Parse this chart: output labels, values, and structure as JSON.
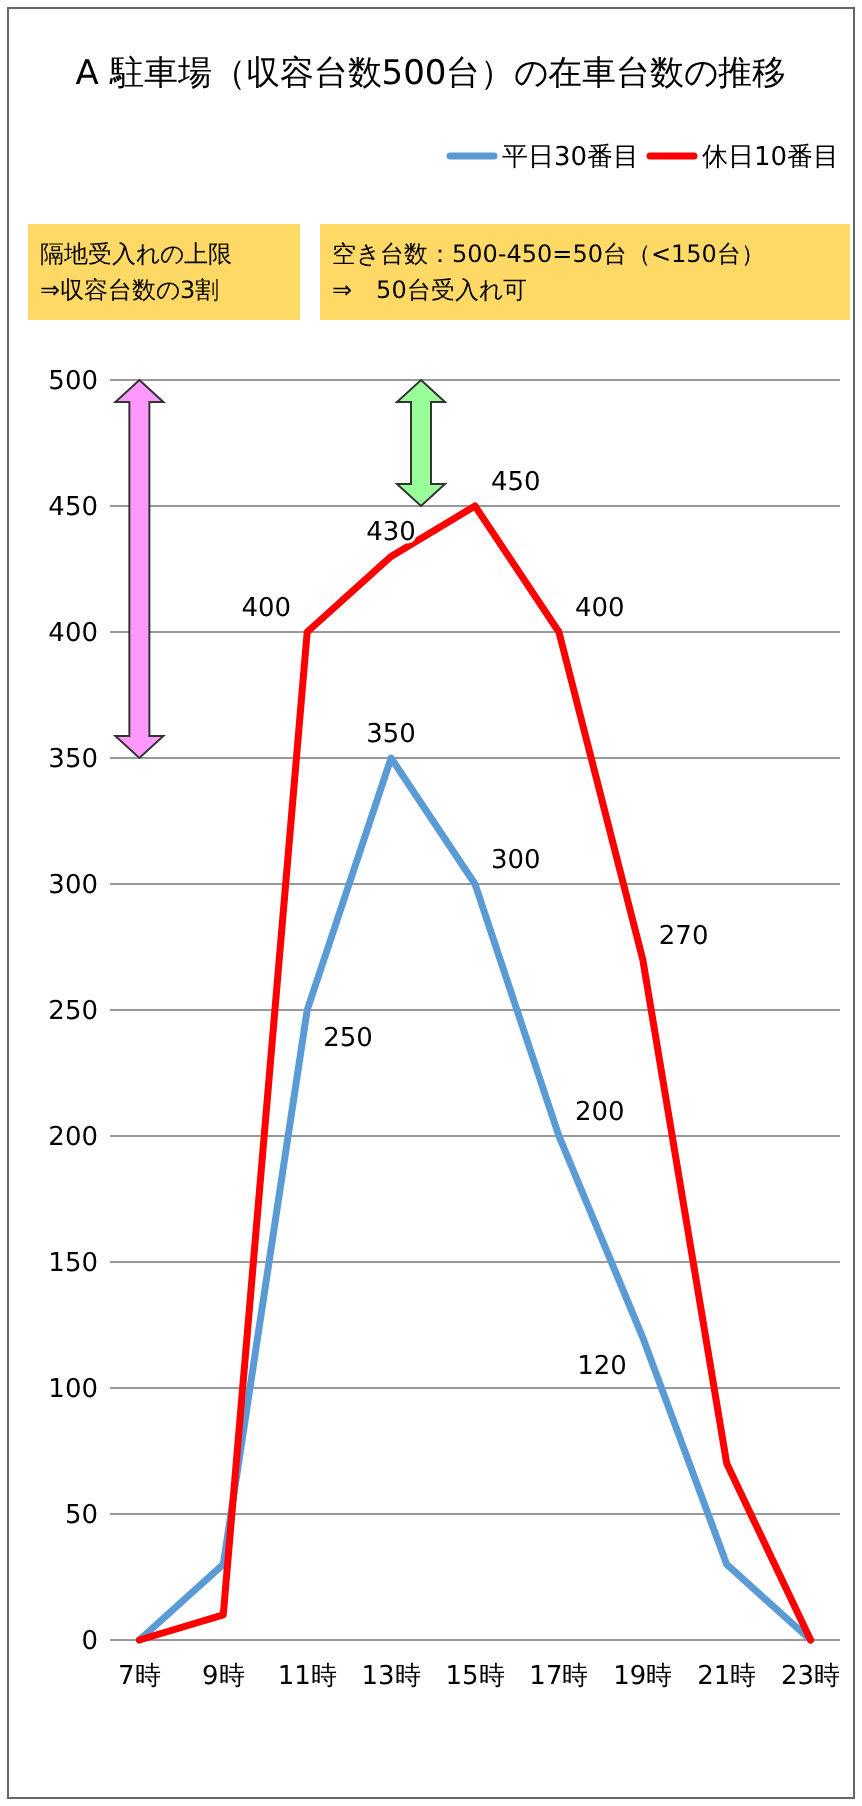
{
  "chart_data": {
    "type": "line",
    "title": "A 駐車場（収容台数500台）の在車台数の推移",
    "categories": [
      "7時",
      "9時",
      "11時",
      "13時",
      "15時",
      "17時",
      "19時",
      "21時",
      "23時"
    ],
    "series": [
      {
        "name": "平日30番目",
        "color": "#5b9bd5",
        "values": [
          0,
          30,
          250,
          350,
          300,
          200,
          120,
          30,
          0
        ],
        "value_labels": [
          null,
          null,
          "250",
          "350",
          "300",
          "200",
          "120",
          null,
          null
        ]
      },
      {
        "name": "休日10番目",
        "color": "#ff0000",
        "values": [
          0,
          10,
          400,
          430,
          450,
          400,
          270,
          70,
          0
        ],
        "value_labels": [
          null,
          null,
          "400",
          "430",
          "450",
          "400",
          "270",
          null,
          null
        ]
      }
    ],
    "ylim": [
      0,
      500
    ],
    "yticks": [
      0,
      50,
      100,
      150,
      200,
      250,
      300,
      350,
      400,
      450,
      500
    ],
    "grid": "y",
    "legend": "top right",
    "marker": "none",
    "line_style": "solid",
    "annotations": [
      "隔地受入れの上限\n⇒収容台数の3割",
      "空き台数：500-450=50台（<150台）\n⇒　50台受入れ可"
    ]
  }
}
